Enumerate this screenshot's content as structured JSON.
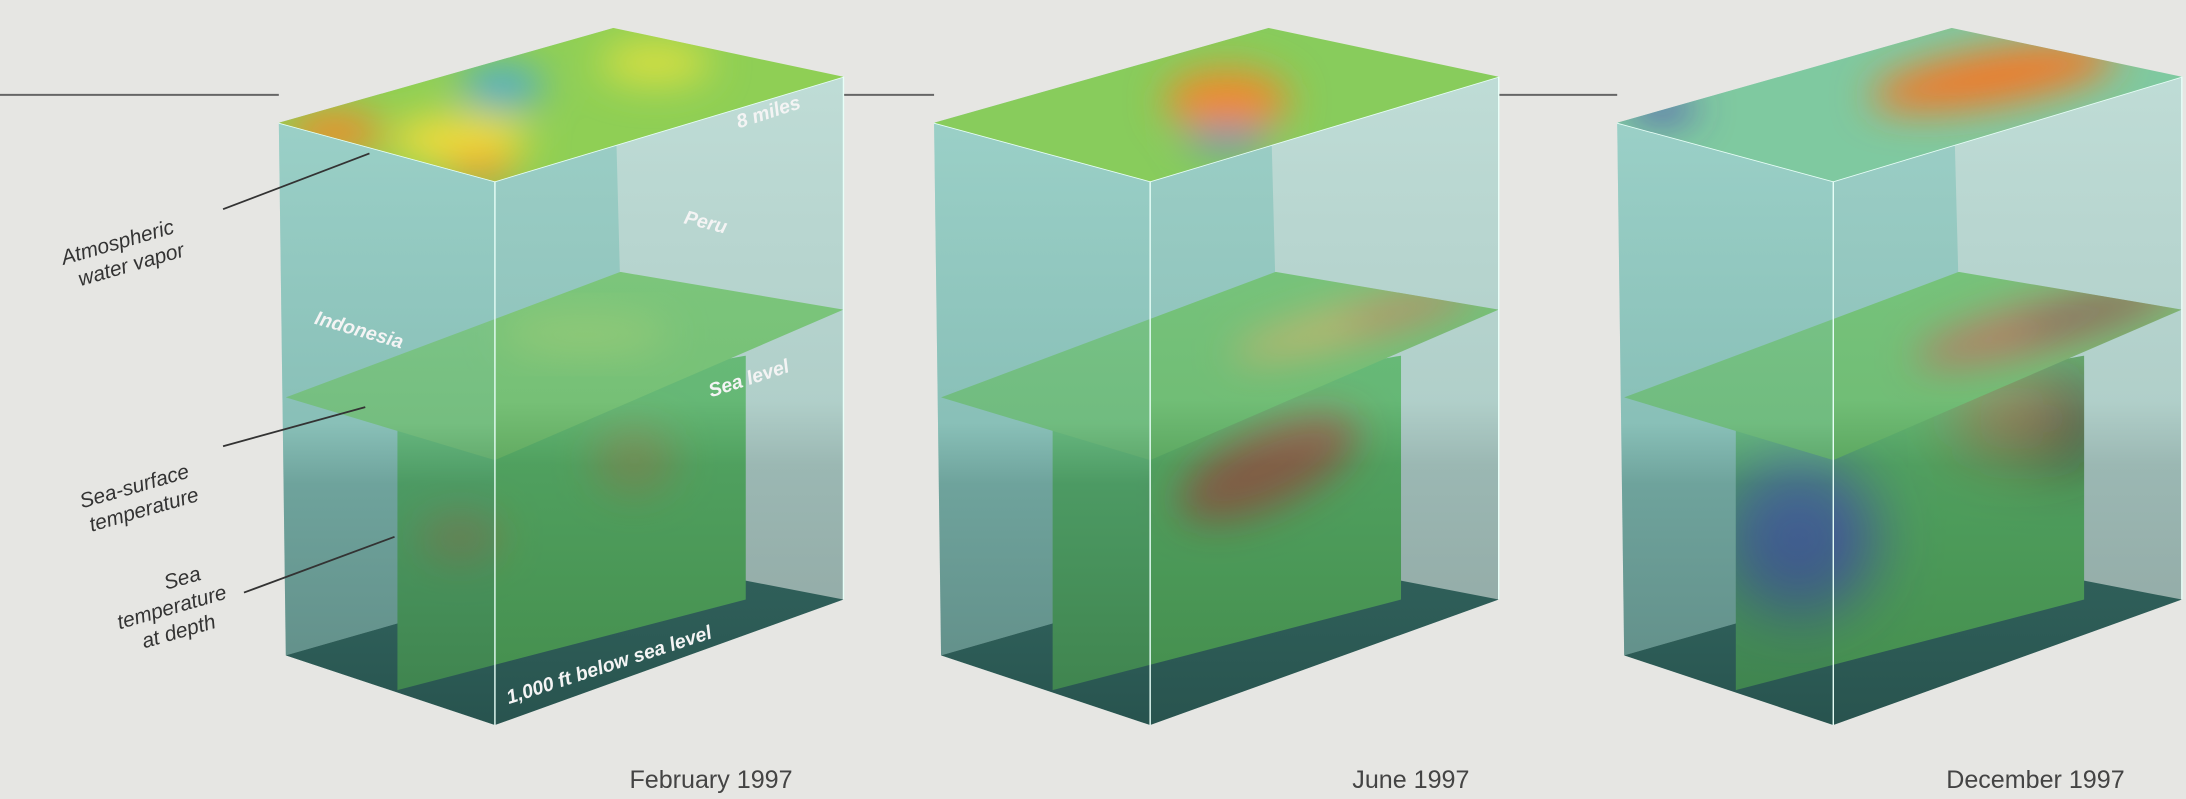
{
  "side_labels": {
    "water_vapor": [
      "Atmospheric",
      "water vapor"
    ],
    "surface_temp": [
      "Sea-surface",
      "temperature"
    ],
    "depth_temp": [
      "Sea",
      "temperature",
      "at depth"
    ]
  },
  "box_labels": {
    "height": "8 miles",
    "peru": "Peru",
    "indonesia": "Indonesia",
    "sea_level": "Sea level",
    "depth": "1,000 ft below sea level"
  },
  "panels": [
    {
      "caption": "February 1997"
    },
    {
      "caption": "June 1997"
    },
    {
      "caption": "December 1997"
    }
  ]
}
